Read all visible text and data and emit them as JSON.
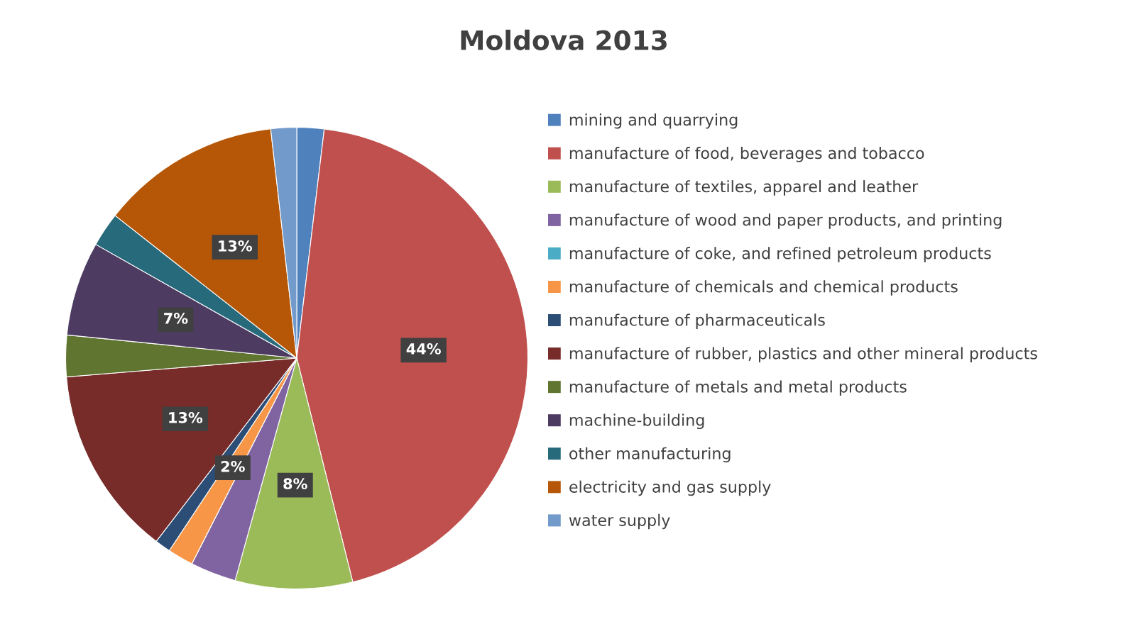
{
  "chart_data": {
    "type": "pie",
    "title": "Moldova 2013",
    "categories": [
      "mining and quarrying",
      "manufacture of food, beverages and tobacco",
      "manufacture of textiles, apparel and leather",
      "manufacture of wood and paper products, and printing",
      "manufacture of coke, and refined petroleum products",
      "manufacture of chemicals and chemical products",
      "manufacture of pharmaceuticals",
      "manufacture of rubber, plastics and other mineral products",
      "manufacture of metals and metal products",
      "machine-building",
      "other manufacturing",
      "electricity and gas supply",
      "water supply"
    ],
    "values": [
      1.9,
      44.2,
      8.2,
      3.2,
      0,
      1.8,
      1.1,
      13.3,
      2.9,
      6.6,
      2.4,
      12.6,
      1.8
    ],
    "value_labels": [
      null,
      "44%",
      "8%",
      null,
      null,
      "2%",
      null,
      "13%",
      null,
      "7%",
      null,
      "13%",
      null
    ],
    "colors": [
      "#4f81bd",
      "#c0504d",
      "#9bbb59",
      "#8064a2",
      "#4bacc6",
      "#f79646",
      "#2c4d75",
      "#772c2a",
      "#5f7530",
      "#4d3b62",
      "#276a7c",
      "#b65708",
      "#729aca"
    ],
    "legend": "right"
  }
}
